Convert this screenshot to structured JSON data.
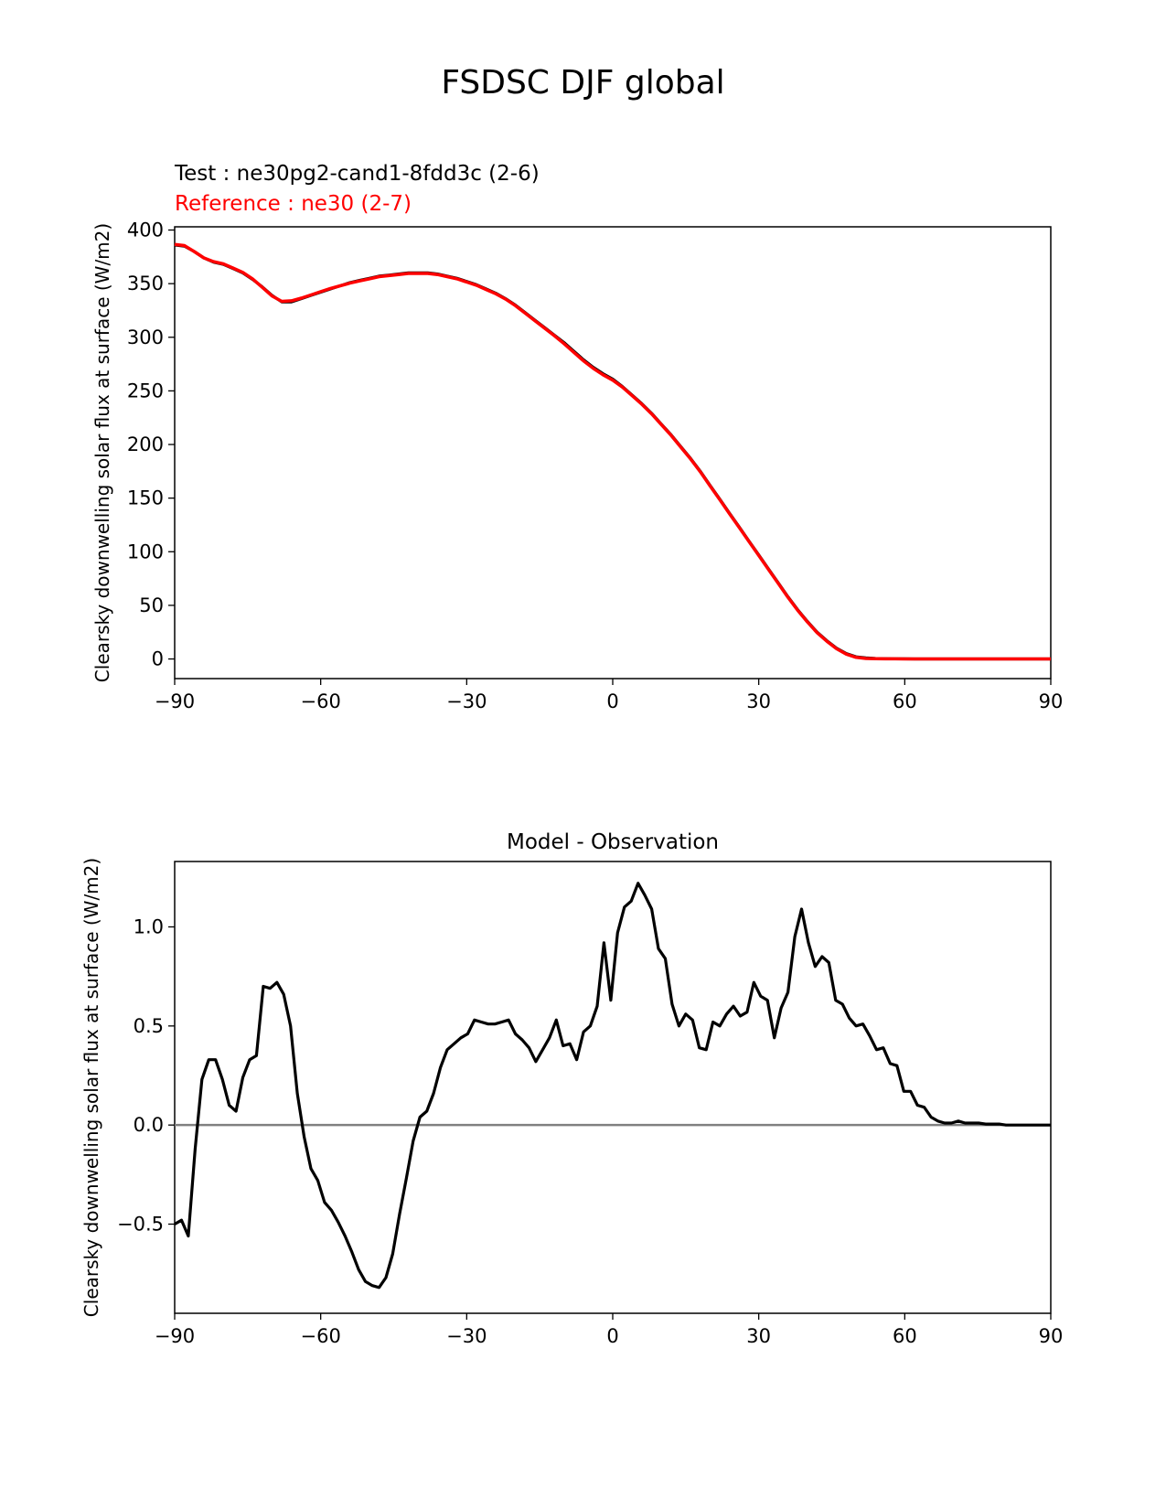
{
  "suptitle": "FSDSC DJF global",
  "chart_data": [
    {
      "type": "line",
      "title": "",
      "test_label": "Test : ne30pg2-cand1-8fdd3c (2-6)",
      "ref_label": "Reference : ne30 (2-7)",
      "xlabel": "",
      "ylabel": "Clearsky downwelling solar flux at surface (W/m2)",
      "xlim": [
        -90,
        90
      ],
      "ylim": [
        -18.3,
        403
      ],
      "xticks": [
        -90,
        -60,
        -30,
        0,
        30,
        60,
        90
      ],
      "xtick_labels": [
        "−90",
        "−60",
        "−30",
        "0",
        "30",
        "60",
        "90"
      ],
      "yticks": [
        0,
        50,
        100,
        150,
        200,
        250,
        300,
        350,
        400
      ],
      "ytick_labels": [
        "0",
        "50",
        "100",
        "150",
        "200",
        "250",
        "300",
        "350",
        "400"
      ],
      "colors": {
        "test": "#000000",
        "reference": "#ff0000"
      },
      "series": [
        {
          "role": "test",
          "x": [
            -90,
            -88,
            -86,
            -84,
            -82,
            -80,
            -78,
            -76,
            -74,
            -72,
            -70,
            -68,
            -66,
            -64,
            -62,
            -60,
            -58,
            -56,
            -54,
            -52,
            -50,
            -48,
            -46,
            -44,
            -42,
            -40,
            -38,
            -36,
            -34,
            -32,
            -30,
            -28,
            -26,
            -24,
            -22,
            -20,
            -18,
            -16,
            -14,
            -12,
            -10,
            -8,
            -6,
            -4,
            -2,
            0,
            2,
            4,
            6,
            8,
            10,
            12,
            14,
            16,
            18,
            20,
            22,
            24,
            26,
            28,
            30,
            32,
            34,
            36,
            38,
            40,
            42,
            44,
            46,
            48,
            50,
            52,
            54,
            56,
            58,
            60,
            62,
            64,
            66,
            68,
            70,
            72,
            74,
            76,
            78,
            80,
            82,
            84,
            86,
            88,
            90
          ],
          "values": [
            386,
            385,
            380,
            374,
            370,
            368,
            364,
            360,
            354,
            347,
            339,
            333,
            333,
            336,
            339,
            342,
            345,
            348,
            351,
            353,
            355,
            357,
            358,
            359,
            360,
            360,
            360,
            359,
            357,
            355,
            352,
            349,
            345,
            341,
            336,
            330,
            323,
            316,
            309,
            302,
            295,
            287,
            279,
            272,
            266,
            261,
            254,
            246,
            238,
            229,
            219,
            209,
            198,
            187,
            175,
            162,
            149,
            136,
            123,
            110,
            97,
            84,
            71,
            58,
            46,
            35,
            25,
            17,
            10,
            5,
            2,
            1,
            0.5,
            0.3,
            0.2,
            0.1,
            0,
            0,
            0,
            0,
            0,
            0,
            0,
            0,
            0,
            0,
            0,
            0,
            0,
            0,
            0
          ]
        },
        {
          "role": "reference",
          "x": [
            -90,
            -88,
            -86,
            -84,
            -82,
            -80,
            -78,
            -76,
            -74,
            -72,
            -70,
            -68,
            -66,
            -64,
            -62,
            -60,
            -58,
            -56,
            -54,
            -52,
            -50,
            -48,
            -46,
            -44,
            -42,
            -40,
            -38,
            -36,
            -34,
            -32,
            -30,
            -28,
            -26,
            -24,
            -22,
            -20,
            -18,
            -16,
            -14,
            -12,
            -10,
            -8,
            -6,
            -4,
            -2,
            0,
            2,
            4,
            6,
            8,
            10,
            12,
            14,
            16,
            18,
            20,
            22,
            24,
            26,
            28,
            30,
            32,
            34,
            36,
            38,
            40,
            42,
            44,
            46,
            48,
            50,
            52,
            54,
            56,
            58,
            60,
            62,
            64,
            66,
            68,
            70,
            72,
            74,
            76,
            78,
            80,
            82,
            84,
            86,
            88,
            90
          ],
          "values": [
            386.5,
            385.5,
            380,
            374,
            370.5,
            368.5,
            364.5,
            360.5,
            354.5,
            346.5,
            338.5,
            333.5,
            334,
            336.5,
            339.5,
            342.5,
            345.5,
            348,
            350.5,
            352.5,
            354.5,
            356.5,
            357.5,
            358.5,
            359.5,
            359.5,
            359.5,
            358.5,
            356.5,
            354.5,
            351.5,
            348.5,
            344.5,
            340.5,
            335.5,
            329.5,
            322.5,
            315.5,
            308.5,
            301.5,
            294,
            286,
            278,
            271,
            265,
            260,
            253.5,
            245.5,
            237.5,
            228.5,
            218.5,
            208.5,
            197.5,
            186.5,
            174.5,
            161.5,
            148.5,
            135.5,
            122.5,
            109.5,
            96.5,
            83.5,
            70.5,
            57.5,
            45.5,
            34.5,
            24.5,
            16.5,
            9.5,
            4.5,
            1.5,
            0.5,
            0.2,
            0.1,
            0.1,
            0,
            0,
            0,
            0,
            0,
            0,
            0,
            0,
            0,
            0,
            0,
            0,
            0,
            0,
            0,
            0
          ]
        }
      ],
      "grid": false,
      "legend": "none"
    },
    {
      "type": "line",
      "title": "Model - Observation",
      "xlabel": "",
      "ylabel": "Clearsky downwelling solar flux at surface (W/m2)",
      "xlim": [
        -90,
        90
      ],
      "ylim": [
        -0.95,
        1.33
      ],
      "xticks": [
        -90,
        -60,
        -30,
        0,
        30,
        60,
        90
      ],
      "xtick_labels": [
        "−90",
        "−60",
        "−30",
        "0",
        "30",
        "60",
        "90"
      ],
      "yticks": [
        -0.5,
        0.0,
        0.5,
        1.0
      ],
      "ytick_labels": [
        "−0.5",
        "0.0",
        "0.5",
        "1.0"
      ],
      "zero_line_color": "#808080",
      "series": [
        {
          "role": "difference",
          "x": [
            -90.0,
            -88.6,
            -87.2,
            -85.8,
            -84.4,
            -83.0,
            -81.6,
            -80.2,
            -78.8,
            -77.4,
            -76.0,
            -74.6,
            -73.2,
            -71.8,
            -70.4,
            -69.0,
            -67.6,
            -66.2,
            -64.8,
            -63.4,
            -62.0,
            -60.6,
            -59.2,
            -57.8,
            -56.4,
            -55.0,
            -53.6,
            -52.2,
            -50.8,
            -49.4,
            -48.0,
            -46.6,
            -45.2,
            -43.8,
            -42.4,
            -41.0,
            -39.6,
            -38.2,
            -36.8,
            -35.4,
            -34.0,
            -32.6,
            -31.2,
            -29.8,
            -28.4,
            -27.0,
            -25.6,
            -24.2,
            -22.8,
            -21.4,
            -20.0,
            -18.6,
            -17.2,
            -15.8,
            -14.4,
            -13.0,
            -11.6,
            -10.2,
            -8.8,
            -7.4,
            -6.0,
            -4.6,
            -3.2,
            -1.8,
            -0.4,
            1.0,
            2.4,
            3.8,
            5.2,
            6.6,
            8.0,
            9.4,
            10.8,
            12.2,
            13.6,
            15.0,
            16.4,
            17.8,
            19.2,
            20.6,
            22.0,
            23.4,
            24.8,
            26.2,
            27.6,
            29.0,
            30.4,
            31.8,
            33.2,
            34.6,
            36.0,
            37.4,
            38.8,
            40.2,
            41.6,
            43.0,
            44.4,
            45.8,
            47.2,
            48.6,
            50.0,
            51.4,
            52.8,
            54.2,
            55.6,
            57.0,
            58.4,
            59.8,
            61.2,
            62.6,
            64.0,
            65.4,
            66.8,
            68.2,
            69.6,
            71.0,
            72.4,
            73.8,
            75.2,
            76.6,
            78.0,
            79.4,
            80.8,
            82.2,
            83.6,
            85.0,
            86.4,
            87.8,
            90.0
          ],
          "values": [
            -0.5,
            -0.48,
            -0.56,
            -0.12,
            0.23,
            0.33,
            0.33,
            0.23,
            0.1,
            0.07,
            0.24,
            0.33,
            0.35,
            0.7,
            0.69,
            0.72,
            0.66,
            0.5,
            0.16,
            -0.06,
            -0.22,
            -0.28,
            -0.39,
            -0.43,
            -0.49,
            -0.56,
            -0.64,
            -0.73,
            -0.79,
            -0.81,
            -0.82,
            -0.77,
            -0.65,
            -0.45,
            -0.27,
            -0.08,
            0.04,
            0.07,
            0.16,
            0.29,
            0.38,
            0.41,
            0.44,
            0.46,
            0.53,
            0.52,
            0.51,
            0.51,
            0.52,
            0.53,
            0.46,
            0.43,
            0.39,
            0.32,
            0.38,
            0.44,
            0.53,
            0.4,
            0.41,
            0.33,
            0.47,
            0.5,
            0.6,
            0.92,
            0.63,
            0.97,
            1.1,
            1.13,
            1.22,
            1.16,
            1.09,
            0.89,
            0.84,
            0.61,
            0.5,
            0.56,
            0.53,
            0.39,
            0.38,
            0.52,
            0.5,
            0.56,
            0.6,
            0.55,
            0.57,
            0.72,
            0.65,
            0.63,
            0.44,
            0.59,
            0.67,
            0.95,
            1.09,
            0.92,
            0.8,
            0.85,
            0.82,
            0.63,
            0.61,
            0.54,
            0.5,
            0.51,
            0.45,
            0.38,
            0.39,
            0.31,
            0.3,
            0.17,
            0.17,
            0.1,
            0.09,
            0.04,
            0.02,
            0.01,
            0.01,
            0.02,
            0.01,
            0.01,
            0.01,
            0.005,
            0.005,
            0.005,
            0.0,
            0.0,
            0.0,
            0.0,
            0.0,
            0.0,
            0.0
          ]
        }
      ],
      "grid": false,
      "legend": "none"
    }
  ]
}
